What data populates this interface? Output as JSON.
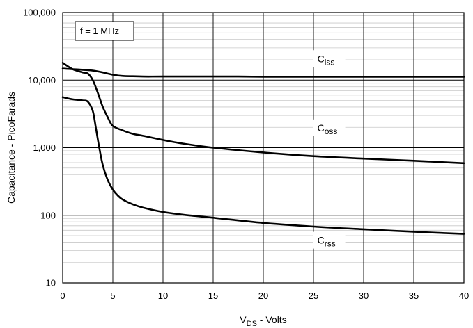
{
  "chart_data": {
    "type": "line",
    "xlabel": {
      "main": "V",
      "sub": "DS",
      "rest": " - Volts"
    },
    "ylabel": "Capacitance - PicoFarads",
    "xlim": [
      0,
      40
    ],
    "ylim": [
      10,
      100000
    ],
    "yscale": "log",
    "grid": true,
    "x_ticks": [
      0,
      5,
      10,
      15,
      20,
      25,
      30,
      35,
      40
    ],
    "x_tick_labels": [
      "0",
      "5",
      "10",
      "15",
      "20",
      "25",
      "30",
      "35",
      "40"
    ],
    "y_ticks": [
      10,
      100,
      1000,
      10000,
      100000
    ],
    "y_tick_labels": [
      "10",
      "100",
      "1,000",
      "10,000",
      "100,000"
    ],
    "annotation": "f = 1 MHz",
    "series": [
      {
        "name": {
          "main": "C",
          "sub": "iss"
        },
        "x": [
          0,
          1,
          2,
          3,
          4,
          5,
          6,
          7,
          8,
          10,
          15,
          17.5,
          20,
          25,
          30,
          35,
          40
        ],
        "y": [
          14800,
          14500,
          14200,
          13800,
          13000,
          12000,
          11500,
          11400,
          11300,
          11300,
          11300,
          11300,
          11200,
          11200,
          11200,
          11200,
          11200
        ]
      },
      {
        "name": {
          "main": "C",
          "sub": "oss"
        },
        "x": [
          0,
          1,
          2,
          2.5,
          3,
          3.5,
          4,
          4.5,
          5,
          6,
          7,
          8,
          10,
          12,
          15,
          20,
          25,
          30,
          35,
          40
        ],
        "y": [
          18000,
          14500,
          13000,
          12500,
          10000,
          6500,
          4000,
          2800,
          2100,
          1800,
          1600,
          1500,
          1300,
          1150,
          1000,
          850,
          750,
          690,
          640,
          590
        ]
      },
      {
        "name": {
          "main": "C",
          "sub": "rss"
        },
        "x": [
          0,
          1,
          2,
          2.5,
          3,
          3.3,
          3.6,
          4,
          4.5,
          5,
          5.5,
          6,
          7,
          8,
          10,
          12,
          15,
          20,
          25,
          30,
          35,
          40
        ],
        "y": [
          5600,
          5200,
          5000,
          4800,
          3500,
          2000,
          1100,
          550,
          330,
          240,
          195,
          170,
          145,
          130,
          112,
          102,
          92,
          77,
          68,
          62,
          57,
          53
        ]
      }
    ]
  }
}
